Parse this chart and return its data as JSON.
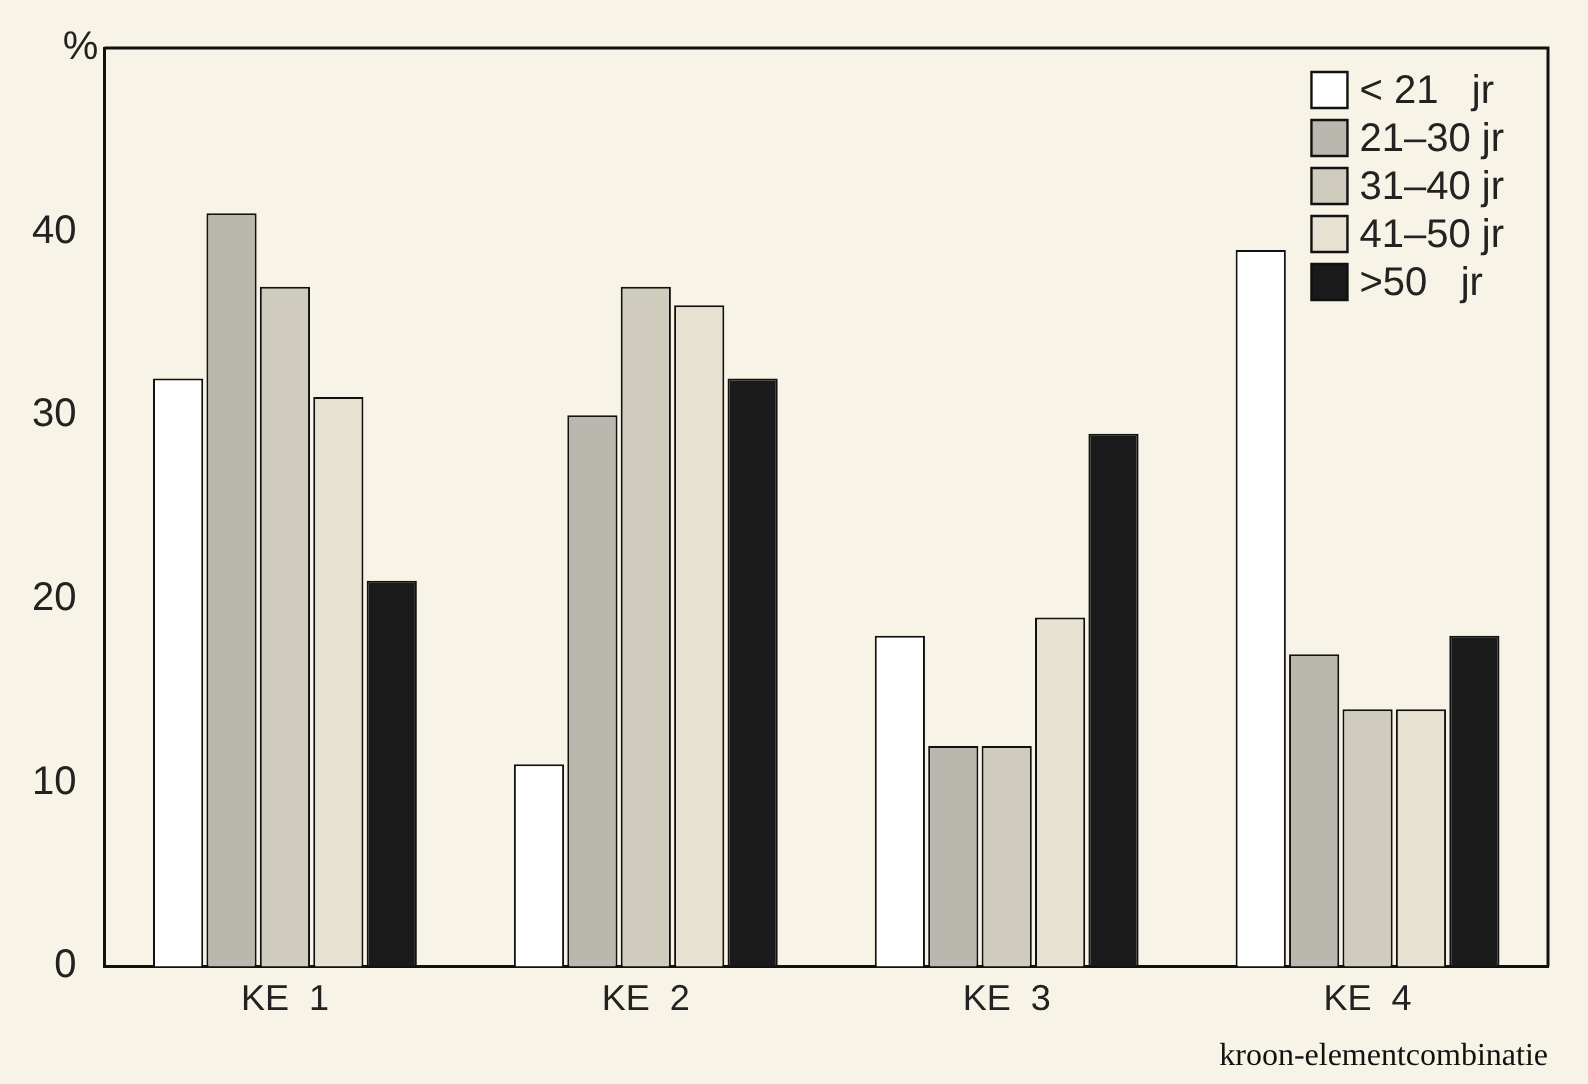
{
  "chart_data": {
    "type": "bar",
    "ylabel": "%",
    "xlabel": "kroon-elementcombinatie",
    "categories": [
      "KE  1",
      "KE  2",
      "KE  3",
      "KE  4"
    ],
    "series": [
      {
        "name": "< 21   jr",
        "color": "#ffffff",
        "values": [
          32,
          11,
          18,
          39
        ]
      },
      {
        "name": "21–30 jr",
        "color": "#b9b7ae",
        "values": [
          41,
          30,
          12,
          17
        ]
      },
      {
        "name": "31–40 jr",
        "color": "#cfcbbd",
        "values": [
          37,
          37,
          12,
          14
        ]
      },
      {
        "name": "41–50 jr",
        "color": "#e6e1d0",
        "values": [
          31,
          36,
          19,
          14
        ]
      },
      {
        "name": ">50   jr",
        "color": "#1a1a1a",
        "values": [
          21,
          32,
          29,
          18
        ]
      }
    ],
    "ylim": [
      0,
      50
    ],
    "yticks": [
      0,
      10,
      20,
      30,
      40
    ],
    "grid": false,
    "legend": "top right"
  }
}
